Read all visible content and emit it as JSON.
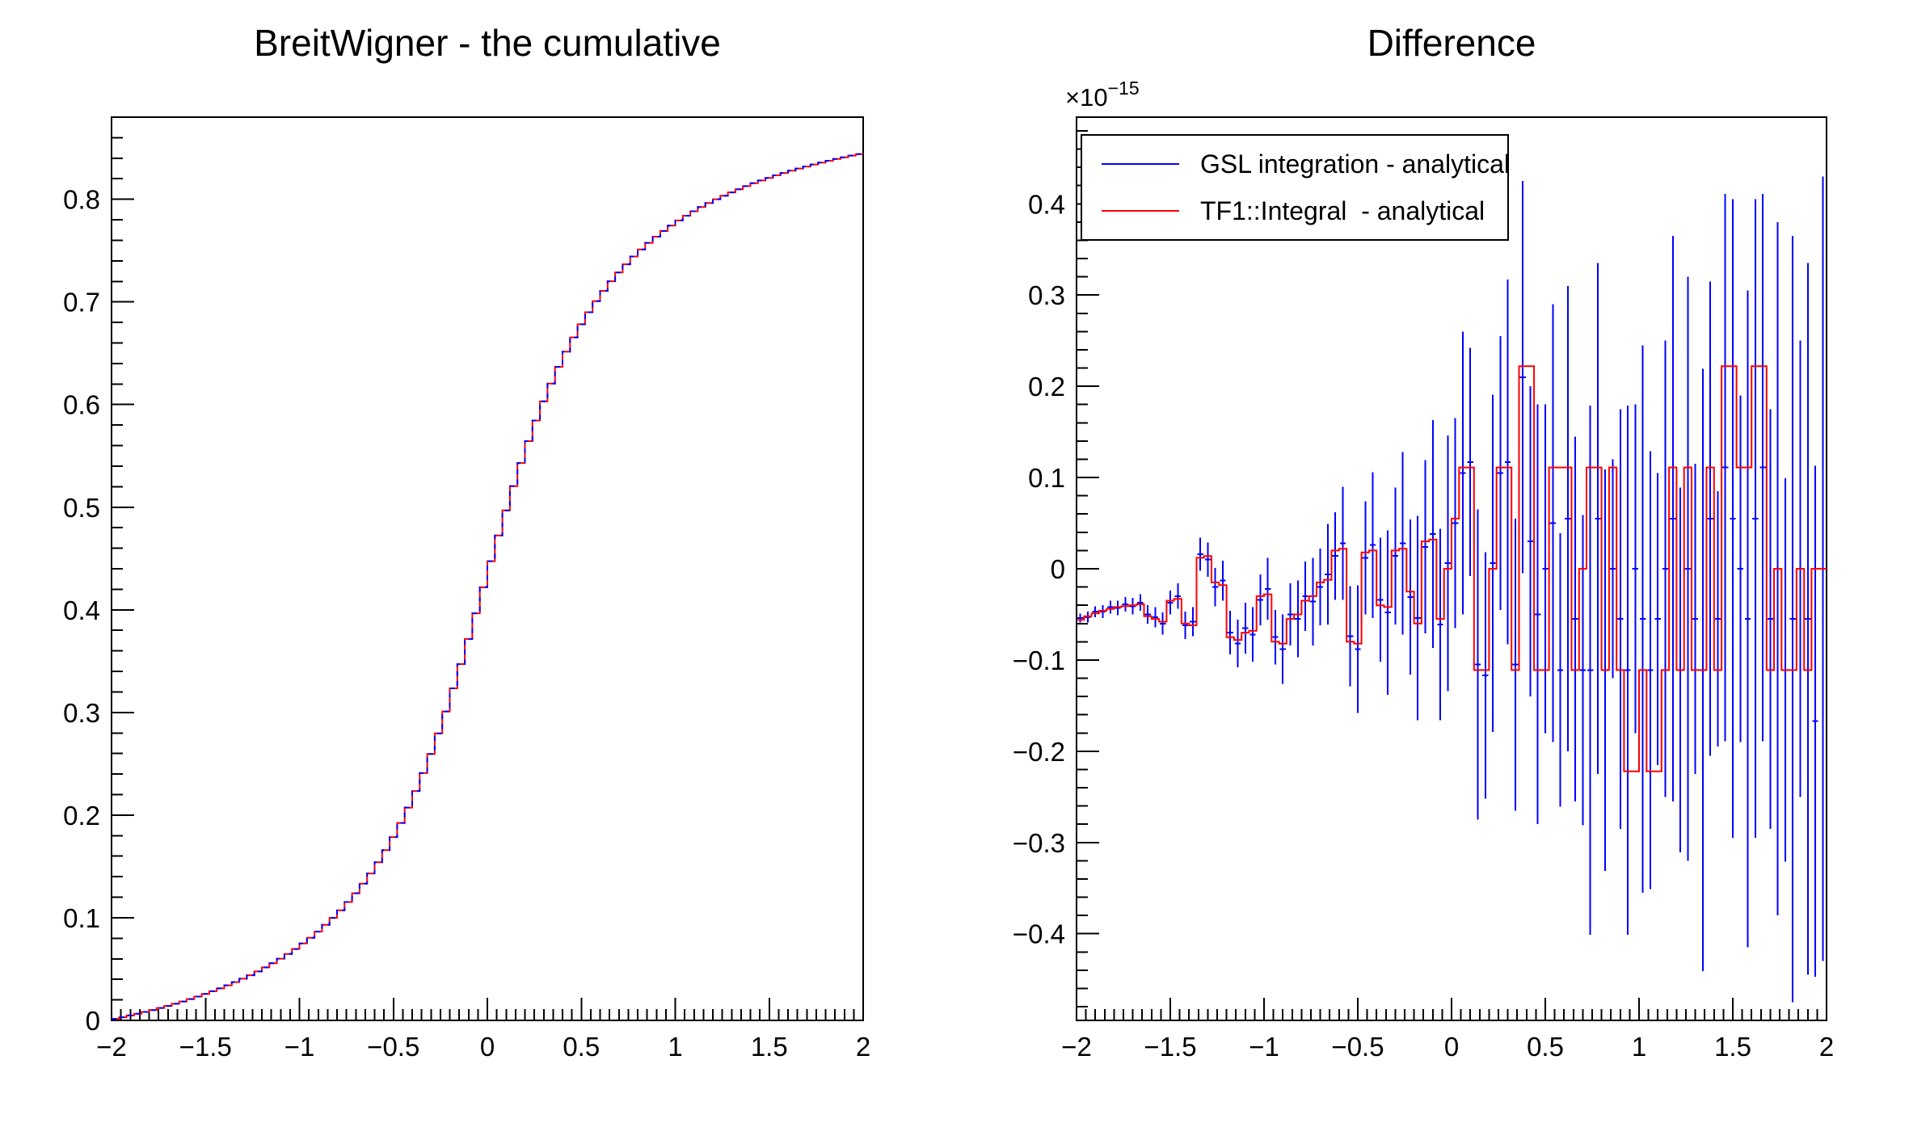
{
  "canvas": {
    "background": "#ffffff"
  },
  "colors": {
    "gsl_blue": "#0000ff",
    "tf1_red": "#ff0000",
    "axis": "#000000"
  },
  "chart_data": [
    {
      "type": "line",
      "title": "BreitWigner - the cumulative",
      "xlabel": "",
      "ylabel": "",
      "xlim": [
        -2,
        2
      ],
      "ylim": [
        0,
        0.88
      ],
      "grid": false,
      "x_tick_labels": [
        "−2",
        "−1.5",
        "−1",
        "−0.5",
        "0",
        "0.5",
        "1",
        "1.5",
        "2"
      ],
      "y_tick_labels": [
        "0",
        "0.1",
        "0.2",
        "0.3",
        "0.4",
        "0.5",
        "0.6",
        "0.7",
        "0.8"
      ],
      "bin_start": -2,
      "bin_width": 0.04,
      "n_bins": 100,
      "note": "two coincident step histograms (red TF1::Integral under dashed blue GSL) forming a purple-looking cumulative curve",
      "values": [
        0.0015,
        0.0031,
        0.0048,
        0.0065,
        0.0083,
        0.0101,
        0.0121,
        0.0141,
        0.0162,
        0.0184,
        0.0208,
        0.0232,
        0.0257,
        0.0284,
        0.0312,
        0.0342,
        0.0373,
        0.0406,
        0.044,
        0.0477,
        0.0516,
        0.0557,
        0.0601,
        0.0647,
        0.0696,
        0.0749,
        0.0805,
        0.0865,
        0.093,
        0.0999,
        0.1073,
        0.1153,
        0.1239,
        0.1332,
        0.1432,
        0.1541,
        0.1659,
        0.1786,
        0.1924,
        0.2073,
        0.2235,
        0.2409,
        0.2596,
        0.2797,
        0.301,
        0.3235,
        0.3471,
        0.3716,
        0.3966,
        0.422,
        0.4474,
        0.4725,
        0.4969,
        0.5205,
        0.543,
        0.5644,
        0.5844,
        0.6031,
        0.6205,
        0.6367,
        0.6516,
        0.6654,
        0.6782,
        0.6899,
        0.7008,
        0.7108,
        0.7201,
        0.7287,
        0.7367,
        0.7442,
        0.7511,
        0.7575,
        0.7635,
        0.7691,
        0.7744,
        0.7793,
        0.784,
        0.7883,
        0.7924,
        0.7963,
        0.8,
        0.8035,
        0.8067,
        0.8098,
        0.8128,
        0.8156,
        0.8183,
        0.8208,
        0.8233,
        0.8256,
        0.8278,
        0.8299,
        0.8319,
        0.8339,
        0.8358,
        0.8375,
        0.8393,
        0.8409,
        0.8425,
        0.844
      ]
    },
    {
      "type": "bar",
      "title": "Difference",
      "xlabel": "",
      "ylabel": "",
      "exponent": {
        "base": "×10",
        "power": "−15"
      },
      "y_unit_scale": "1e-15",
      "xlim": [
        -2,
        2
      ],
      "ylim": [
        -0.495,
        0.495
      ],
      "grid": false,
      "legend_position": "top-left",
      "legend": [
        {
          "label": "GSL integration - analytical",
          "color": "#0000ff",
          "style": "error-bars"
        },
        {
          "label": "TF1::Integral  - analytical",
          "color": "#ff0000",
          "style": "step-histogram"
        }
      ],
      "x_tick_labels": [
        "−2",
        "−1.5",
        "−1",
        "−0.5",
        "0",
        "0.5",
        "1",
        "1.5",
        "2"
      ],
      "y_tick_labels": [
        "−0.4",
        "−0.3",
        "−0.2",
        "−0.1",
        "0",
        "0.1",
        "0.2",
        "0.3",
        "0.4"
      ],
      "bin_start": -2,
      "bin_width": 0.04,
      "n_bins": 100,
      "red_values": [
        -0.056,
        -0.052,
        -0.049,
        -0.046,
        -0.044,
        -0.042,
        -0.041,
        -0.04,
        -0.039,
        -0.052,
        -0.055,
        -0.058,
        -0.035,
        -0.033,
        -0.06,
        -0.062,
        0.012,
        0.014,
        -0.015,
        -0.018,
        -0.075,
        -0.078,
        -0.07,
        -0.068,
        -0.03,
        -0.028,
        -0.08,
        -0.082,
        -0.055,
        -0.05,
        -0.035,
        -0.03,
        -0.015,
        -0.012,
        0.02,
        0.022,
        -0.08,
        -0.082,
        0.018,
        0.02,
        -0.04,
        -0.042,
        0.02,
        0.022,
        -0.025,
        -0.06,
        0.03,
        0.032,
        -0.055,
        0.0,
        0.055,
        0.111,
        0.111,
        -0.111,
        -0.111,
        0.0,
        0.111,
        0.111,
        -0.111,
        0.222,
        0.222,
        -0.111,
        -0.111,
        0.111,
        0.111,
        0.111,
        -0.111,
        0.0,
        0.111,
        0.111,
        -0.111,
        0.111,
        -0.111,
        -0.222,
        -0.222,
        -0.111,
        -0.222,
        -0.222,
        -0.111,
        0.111,
        -0.111,
        0.111,
        -0.111,
        -0.111,
        0.111,
        -0.111,
        0.222,
        0.222,
        0.111,
        0.111,
        0.222,
        0.222,
        -0.111,
        0.0,
        -0.111,
        -0.111,
        0.0,
        -0.111,
        0.0,
        0.0
      ],
      "blue_values": [
        -0.054,
        -0.053,
        -0.047,
        -0.047,
        -0.042,
        -0.043,
        -0.039,
        -0.041,
        -0.037,
        -0.05,
        -0.053,
        -0.06,
        -0.037,
        -0.03,
        -0.062,
        -0.058,
        0.016,
        0.01,
        -0.02,
        -0.013,
        -0.07,
        -0.082,
        -0.065,
        -0.072,
        -0.034,
        -0.022,
        -0.075,
        -0.088,
        -0.05,
        -0.055,
        -0.03,
        -0.036,
        -0.02,
        -0.006,
        0.014,
        0.028,
        -0.074,
        -0.088,
        0.012,
        0.026,
        -0.034,
        -0.048,
        0.014,
        0.028,
        -0.031,
        -0.054,
        0.024,
        0.038,
        -0.061,
        0.006,
        0.05,
        0.105,
        0.117,
        -0.105,
        -0.117,
        0.006,
        0.105,
        0.117,
        -0.105,
        0.21,
        0.03,
        -0.05,
        0.0,
        0.05,
        -0.111,
        0.055,
        -0.055,
        -0.111,
        -0.111,
        0.055,
        -0.111,
        0.0,
        -0.055,
        -0.111,
        0.0,
        -0.055,
        -0.111,
        -0.055,
        0.0,
        0.055,
        -0.111,
        0.0,
        -0.055,
        -0.111,
        0.055,
        -0.055,
        0.111,
        0.055,
        0.0,
        -0.055,
        0.055,
        0.111,
        -0.055,
        0.0,
        -0.111,
        -0.055,
        0.0,
        -0.055,
        -0.167,
        0.0
      ],
      "blue_errors": [
        0.005,
        0.006,
        0.006,
        0.007,
        0.007,
        0.008,
        0.008,
        0.009,
        0.009,
        0.01,
        0.011,
        0.012,
        0.013,
        0.014,
        0.015,
        0.016,
        0.018,
        0.019,
        0.021,
        0.022,
        0.024,
        0.026,
        0.028,
        0.03,
        0.028,
        0.034,
        0.03,
        0.038,
        0.034,
        0.042,
        0.038,
        0.048,
        0.042,
        0.055,
        0.048,
        0.062,
        0.055,
        0.07,
        0.062,
        0.08,
        0.068,
        0.09,
        0.075,
        0.1,
        0.085,
        0.112,
        0.095,
        0.125,
        0.105,
        0.14,
        0.115,
        0.155,
        0.125,
        0.17,
        0.135,
        0.185,
        0.15,
        0.2,
        0.16,
        0.215,
        0.17,
        0.23,
        0.18,
        0.24,
        0.15,
        0.255,
        0.2,
        0.17,
        0.29,
        0.28,
        0.22,
        0.12,
        0.23,
        0.29,
        0.18,
        0.3,
        0.24,
        0.16,
        0.25,
        0.31,
        0.2,
        0.32,
        0.17,
        0.33,
        0.26,
        0.14,
        0.3,
        0.35,
        0.19,
        0.36,
        0.35,
        0.3,
        0.23,
        0.38,
        0.21,
        0.42,
        0.25,
        0.39,
        0.28,
        0.43
      ]
    }
  ]
}
